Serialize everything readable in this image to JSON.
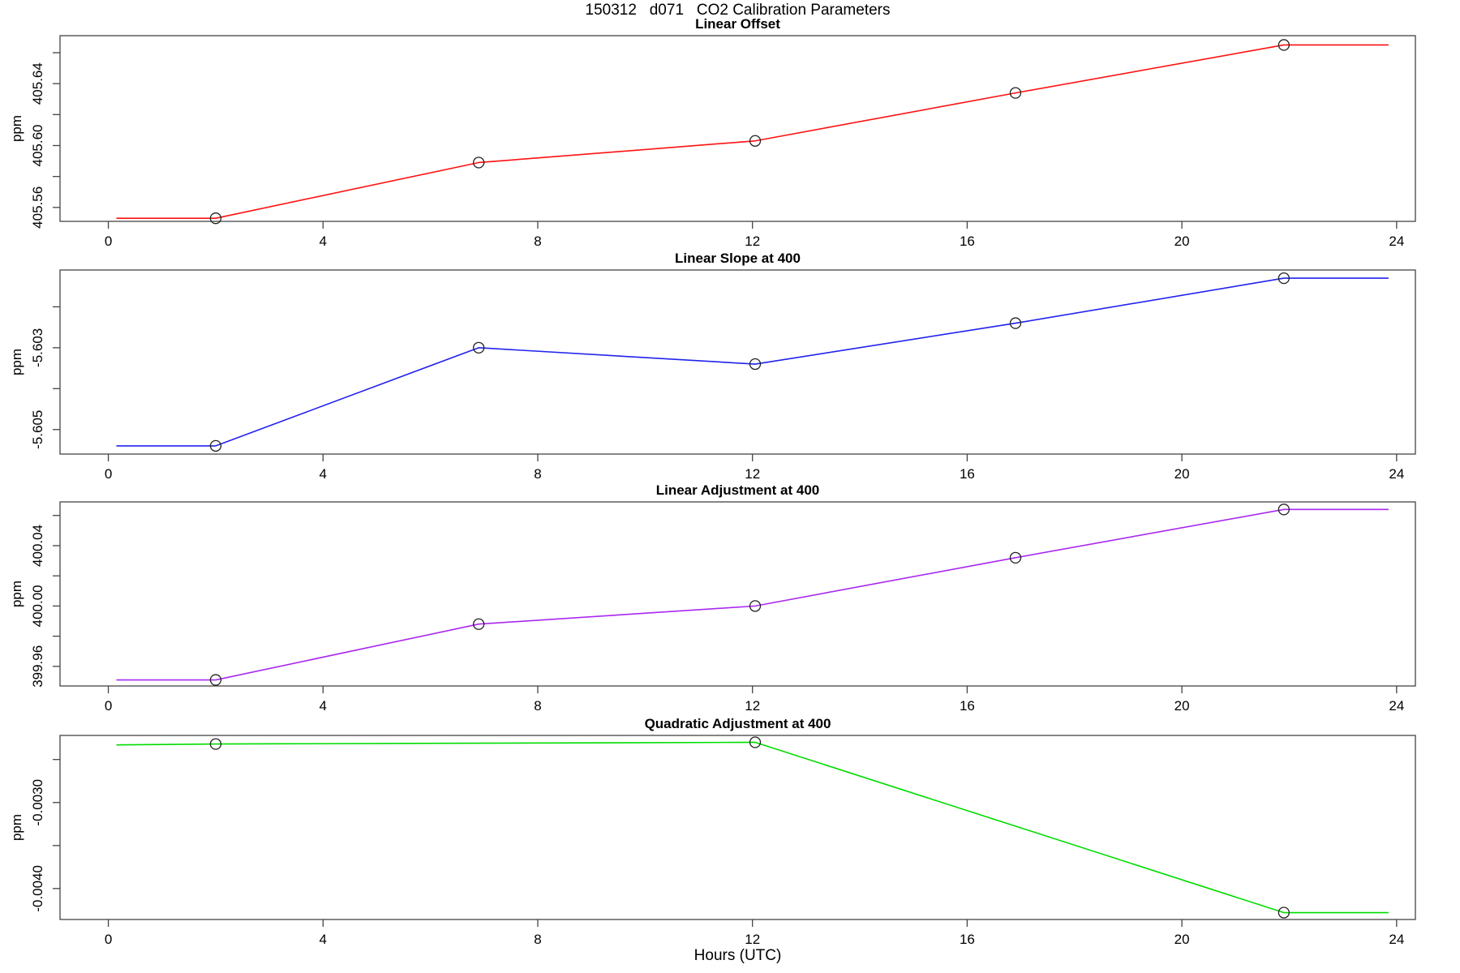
{
  "title": "150312   d071   CO2 Calibration Parameters",
  "xlabel": "Hours (UTC)",
  "chart_data": {
    "type": "line",
    "title": "150312   d071   CO2 Calibration Parameters",
    "xlabel": "Hours (UTC)",
    "xlim": [
      -0.9,
      24.35
    ],
    "xticks": [
      0,
      4,
      8,
      12,
      16,
      20,
      24
    ],
    "grid": false,
    "legend": "none",
    "marker": {
      "shape": "open-circle",
      "radius": 6.5,
      "stroke": "#222222"
    },
    "frame_color": "#444444",
    "panels": [
      {
        "title": "Linear Offset",
        "ylabel": "ppm",
        "color": "#ff1111",
        "ylim": [
          405.551,
          405.671
        ],
        "yticks": [
          {
            "v": 405.56,
            "label": "405.56"
          },
          {
            "v": 405.58,
            "label": ""
          },
          {
            "v": 405.6,
            "label": "405.60"
          },
          {
            "v": 405.62,
            "label": ""
          },
          {
            "v": 405.64,
            "label": "405.64"
          },
          {
            "v": 405.66,
            "label": ""
          }
        ],
        "line": [
          [
            0.15,
            405.553
          ],
          [
            2,
            405.553
          ],
          [
            6.9,
            405.589
          ],
          [
            12.05,
            405.603
          ],
          [
            16.9,
            405.634
          ],
          [
            21.9,
            405.665
          ],
          [
            23.85,
            405.665
          ]
        ],
        "points": [
          [
            2,
            405.553
          ],
          [
            6.9,
            405.589
          ],
          [
            12.05,
            405.603
          ],
          [
            16.9,
            405.634
          ],
          [
            21.9,
            405.665
          ]
        ]
      },
      {
        "title": "Linear Slope at 400",
        "ylabel": "ppm",
        "color": "#2222ee",
        "ylim": [
          -5.6056,
          -5.6011
        ],
        "yticks": [
          {
            "v": -5.602,
            "label": ""
          },
          {
            "v": -5.603,
            "label": "-5.603"
          },
          {
            "v": -5.604,
            "label": ""
          },
          {
            "v": -5.605,
            "label": "-5.605"
          }
        ],
        "line": [
          [
            0.15,
            -5.6054
          ],
          [
            2,
            -5.6054
          ],
          [
            6.9,
            -5.603
          ],
          [
            12.05,
            -5.6034
          ],
          [
            16.9,
            -5.6024
          ],
          [
            21.9,
            -5.6013
          ],
          [
            23.85,
            -5.6013
          ]
        ],
        "points": [
          [
            2,
            -5.6054
          ],
          [
            6.9,
            -5.603
          ],
          [
            12.05,
            -5.6034
          ],
          [
            16.9,
            -5.6024
          ],
          [
            21.9,
            -5.6013
          ]
        ]
      },
      {
        "title": "Linear Adjustment at 400",
        "ylabel": "ppm",
        "color": "#a928f0",
        "ylim": [
          399.947,
          400.069
        ],
        "yticks": [
          {
            "v": 399.96,
            "label": "399.96"
          },
          {
            "v": 399.98,
            "label": ""
          },
          {
            "v": 400.0,
            "label": "400.00"
          },
          {
            "v": 400.02,
            "label": ""
          },
          {
            "v": 400.04,
            "label": "400.04"
          },
          {
            "v": 400.06,
            "label": ""
          }
        ],
        "line": [
          [
            0.15,
            399.951
          ],
          [
            2,
            399.951
          ],
          [
            6.9,
            399.988
          ],
          [
            12.05,
            400.0
          ],
          [
            16.9,
            400.032
          ],
          [
            21.9,
            400.064
          ],
          [
            23.85,
            400.064
          ]
        ],
        "points": [
          [
            2,
            399.951
          ],
          [
            6.9,
            399.988
          ],
          [
            12.05,
            400.0
          ],
          [
            16.9,
            400.032
          ],
          [
            21.9,
            400.064
          ]
        ]
      },
      {
        "title": "Quadratic Adjustment at 400",
        "ylabel": "ppm",
        "color": "#00dd00",
        "ylim": [
          -0.00436,
          -0.00222
        ],
        "yticks": [
          {
            "v": -0.0025,
            "label": ""
          },
          {
            "v": -0.003,
            "label": "-0.0030"
          },
          {
            "v": -0.0035,
            "label": ""
          },
          {
            "v": -0.004,
            "label": "-0.0040"
          }
        ],
        "line": [
          [
            0.15,
            -0.00233
          ],
          [
            2,
            -0.00232
          ],
          [
            12.05,
            -0.0023
          ],
          [
            21.9,
            -0.00428
          ],
          [
            23.85,
            -0.00428
          ]
        ],
        "points": [
          [
            2,
            -0.00232
          ],
          [
            12.05,
            -0.0023
          ],
          [
            21.9,
            -0.00428
          ]
        ]
      }
    ]
  }
}
